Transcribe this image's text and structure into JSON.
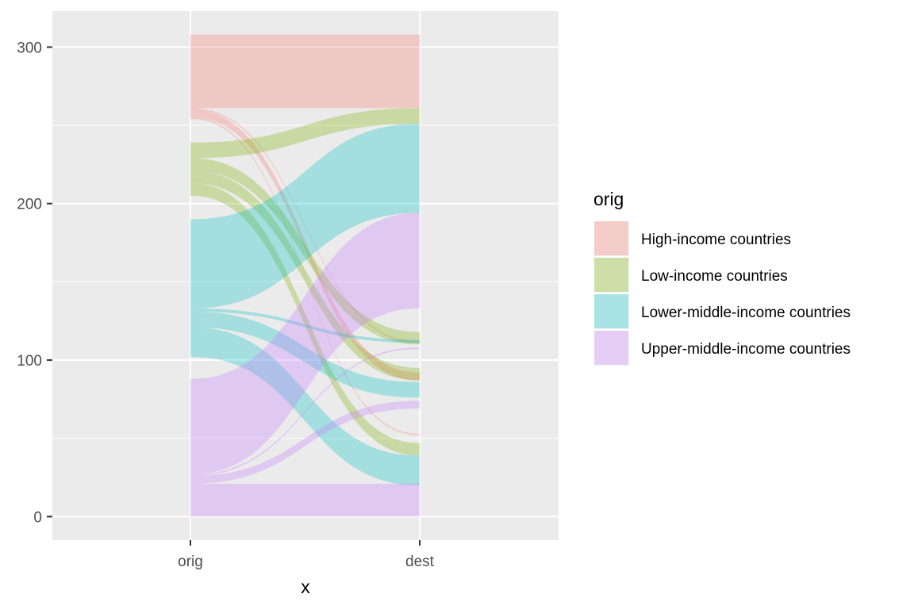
{
  "chart_data": {
    "type": "alluvial",
    "categories": [
      "orig",
      "dest"
    ],
    "xlabel": "x",
    "ylabel": "",
    "ylim": [
      -15,
      323
    ],
    "yticks": [
      0,
      100,
      200,
      300
    ],
    "grid": true,
    "legend": {
      "title": "orig",
      "position": "right",
      "items": [
        {
          "label": "High-income countries",
          "color": "#F8766D"
        },
        {
          "label": "Low-income countries",
          "color": "#7CAE00"
        },
        {
          "label": "Lower-middle-income countries",
          "color": "#00BFC4"
        },
        {
          "label": "Upper-middle-income countries",
          "color": "#C77CFF"
        }
      ]
    },
    "flows": [
      {
        "orig": "High-income countries",
        "dest": "High-income countries",
        "value": 47,
        "orig_range": [
          261,
          308
        ],
        "dest_range": [
          261,
          308
        ]
      },
      {
        "orig": "High-income countries",
        "dest": "Low-income countries",
        "value": 1,
        "orig_range": [
          260,
          261
        ],
        "dest_range": [
          111,
          112
        ]
      },
      {
        "orig": "High-income countries",
        "dest": "Lower-middle-income countries",
        "value": 5,
        "orig_range": [
          255,
          260
        ],
        "dest_range": [
          87,
          92
        ]
      },
      {
        "orig": "High-income countries",
        "dest": "Upper-middle-income countries",
        "value": 1,
        "orig_range": [
          254,
          255
        ],
        "dest_range": [
          52,
          53
        ]
      },
      {
        "orig": "Low-income countries",
        "dest": "High-income countries",
        "value": 10,
        "orig_range": [
          229,
          239
        ],
        "dest_range": [
          251,
          261
        ]
      },
      {
        "orig": "Low-income countries",
        "dest": "Low-income countries",
        "value": 8,
        "orig_range": [
          221,
          229
        ],
        "dest_range": [
          110,
          118
        ]
      },
      {
        "orig": "Low-income countries",
        "dest": "Lower-middle-income countries",
        "value": 8,
        "orig_range": [
          213,
          221
        ],
        "dest_range": [
          87,
          95
        ]
      },
      {
        "orig": "Low-income countries",
        "dest": "Upper-middle-income countries",
        "value": 8,
        "orig_range": [
          205,
          213
        ],
        "dest_range": [
          39,
          47
        ]
      },
      {
        "orig": "Lower-middle-income countries",
        "dest": "High-income countries",
        "value": 57,
        "orig_range": [
          133,
          190
        ],
        "dest_range": [
          194,
          251
        ]
      },
      {
        "orig": "Lower-middle-income countries",
        "dest": "Low-income countries",
        "value": 2,
        "orig_range": [
          131,
          133
        ],
        "dest_range": [
          111,
          113
        ]
      },
      {
        "orig": "Lower-middle-income countries",
        "dest": "Lower-middle-income countries",
        "value": 10,
        "orig_range": [
          121,
          131
        ],
        "dest_range": [
          76,
          86
        ]
      },
      {
        "orig": "Lower-middle-income countries",
        "dest": "Upper-middle-income countries",
        "value": 19,
        "orig_range": [
          102,
          121
        ],
        "dest_range": [
          20,
          39
        ]
      },
      {
        "orig": "Upper-middle-income countries",
        "dest": "High-income countries",
        "value": 61,
        "orig_range": [
          27,
          88
        ],
        "dest_range": [
          133,
          194
        ]
      },
      {
        "orig": "Upper-middle-income countries",
        "dest": "Low-income countries",
        "value": 1,
        "orig_range": [
          26,
          27
        ],
        "dest_range": [
          107,
          108
        ]
      },
      {
        "orig": "Upper-middle-income countries",
        "dest": "Lower-middle-income countries",
        "value": 5,
        "orig_range": [
          21,
          26
        ],
        "dest_range": [
          69,
          74
        ]
      },
      {
        "orig": "Upper-middle-income countries",
        "dest": "Upper-middle-income countries",
        "value": 21,
        "orig_range": [
          0,
          21
        ],
        "dest_range": [
          0,
          21
        ]
      }
    ]
  }
}
